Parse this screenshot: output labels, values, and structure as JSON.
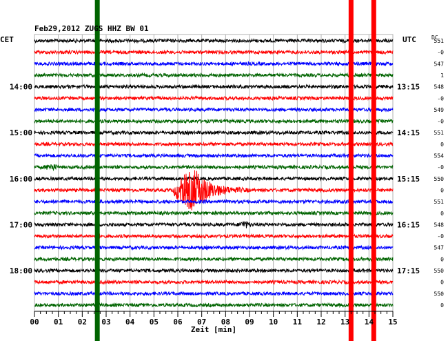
{
  "chart_data": {
    "type": "line",
    "title": "Feb29,2012   ZUGS HHZ BW 01",
    "left_timezone": "CET",
    "right_timezone": "UTC",
    "dc_label": "DC",
    "xlabel": "Zeit [min]",
    "x_ticks": [
      "00",
      "01",
      "02",
      "03",
      "04",
      "05",
      "06",
      "07",
      "08",
      "09",
      "10",
      "11",
      "12",
      "13",
      "14",
      "15"
    ],
    "xlim": [
      0,
      15
    ],
    "left_time_labels": [
      {
        "text": "14:00",
        "trace": 4
      },
      {
        "text": "15:00",
        "trace": 8
      },
      {
        "text": "16:00",
        "trace": 12
      },
      {
        "text": "17:00",
        "trace": 16
      },
      {
        "text": "18:00",
        "trace": 20
      }
    ],
    "right_time_labels": [
      {
        "text": "13:15",
        "trace": 4
      },
      {
        "text": "14:15",
        "trace": 8
      },
      {
        "text": "15:15",
        "trace": 12
      },
      {
        "text": "16:15",
        "trace": 16
      },
      {
        "text": "17:15",
        "trace": 20
      }
    ],
    "dc_values": [
      "551",
      "-0",
      "547",
      "1",
      "548",
      "-0",
      "549",
      "-0",
      "551",
      "0",
      "554",
      "-0",
      "550",
      "0",
      "551",
      "0",
      "548",
      "-0",
      "547",
      "0",
      "550",
      "0",
      "550",
      "0"
    ],
    "trace_colors": [
      "#000000",
      "#ff0000",
      "#0000ff",
      "#006400"
    ],
    "vertical_bars": [
      {
        "minute": 2.63,
        "color": "#006400"
      },
      {
        "minute": 13.25,
        "color": "#ff0000"
      },
      {
        "minute": 14.2,
        "color": "#ff0000"
      }
    ],
    "events": [
      {
        "trace": 13,
        "start_min": 5.8,
        "peak_min": 6.7,
        "end_min": 9.0,
        "peak_amplitude": "large"
      },
      {
        "trace": 16,
        "start_min": 8.5,
        "end_min": 9.1,
        "peak_amplitude": "small"
      },
      {
        "trace": 11,
        "start_min": 0.4,
        "end_min": 1.0,
        "peak_amplitude": "small"
      }
    ],
    "grid": true
  }
}
